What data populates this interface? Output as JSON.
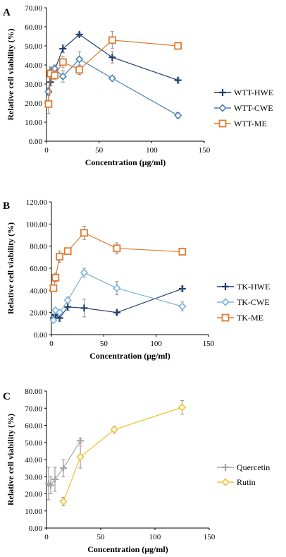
{
  "chart_data": [
    {
      "type": "line",
      "panel_label": "A",
      "xlabel": "Concentration (μg/ml)",
      "ylabel": "Relative cell viability (%)",
      "xlim": [
        0,
        150
      ],
      "ylim": [
        0,
        70
      ],
      "x_ticks": [
        "0",
        "50",
        "100",
        "150"
      ],
      "y_ticks": [
        "0.00",
        "10.00",
        "20.00",
        "30.00",
        "40.00",
        "50.00",
        "60.00",
        "70.00"
      ],
      "legend_position": "right",
      "series": [
        {
          "name": "WTT-HWE",
          "marker": "plus",
          "color": "#1f3f6e",
          "x": [
            1.95,
            3.9,
            7.8,
            15.6,
            31.25,
            62.5,
            125
          ],
          "y": [
            26.0,
            31.0,
            37.5,
            48.5,
            56.0,
            44.0,
            32.0
          ],
          "err": [
            1.5,
            2.0,
            2.0,
            2.0,
            1.0,
            3.0,
            1.0
          ]
        },
        {
          "name": "WTT-CWE",
          "marker": "diamond",
          "color": "#4a7fb8",
          "x": [
            1.95,
            3.9,
            7.8,
            15.6,
            31.25,
            62.5,
            125
          ],
          "y": [
            26.0,
            36.5,
            38.0,
            34.0,
            43.0,
            33.0,
            13.5
          ],
          "err": [
            2.0,
            2.5,
            2.0,
            3.0,
            4.0,
            1.0,
            1.5
          ]
        },
        {
          "name": "WTT-ME",
          "marker": "square",
          "color": "#e07a30",
          "x": [
            1.95,
            3.9,
            7.8,
            15.6,
            31.25,
            62.5,
            125
          ],
          "y": [
            19.5,
            35.5,
            34.5,
            41.5,
            37.5,
            53.0,
            50.0
          ],
          "err": [
            5.0,
            3.0,
            2.0,
            3.0,
            2.5,
            4.5,
            1.0
          ]
        }
      ]
    },
    {
      "type": "line",
      "panel_label": "B",
      "xlabel": "Concentration (μg/ml)",
      "ylabel": "Relative cell viability (%)",
      "xlim": [
        0,
        150
      ],
      "ylim": [
        0,
        120
      ],
      "x_ticks": [
        "0",
        "50",
        "100",
        "150"
      ],
      "y_ticks": [
        "0.00",
        "20.00",
        "40.00",
        "60.00",
        "80.00",
        "100.00",
        "120.00"
      ],
      "legend_position": "right",
      "series": [
        {
          "name": "TK-HWE",
          "marker": "plus",
          "color": "#1f3f6e",
          "x": [
            1.95,
            3.9,
            7.8,
            15.6,
            31.25,
            62.5,
            125
          ],
          "y": [
            15.0,
            18.0,
            15.0,
            25.0,
            24.0,
            20.0,
            41.5
          ],
          "err": [
            2.0,
            2.0,
            3.0,
            3.0,
            8.0,
            1.5,
            2.0
          ]
        },
        {
          "name": "TK-CWE",
          "marker": "diamond",
          "color": "#7ab0e0",
          "x": [
            1.95,
            3.9,
            7.8,
            15.6,
            31.25,
            62.5,
            125
          ],
          "y": [
            13.0,
            22.0,
            20.0,
            31.0,
            56.0,
            42.0,
            25.5
          ],
          "err": [
            2.0,
            2.0,
            2.0,
            3.0,
            4.0,
            6.0,
            4.0
          ]
        },
        {
          "name": "TK-ME",
          "marker": "square",
          "color": "#e07a30",
          "x": [
            1.95,
            3.9,
            7.8,
            15.6,
            31.25,
            62.5,
            125
          ],
          "y": [
            42.0,
            51.5,
            70.5,
            75.5,
            92.0,
            78.0,
            75.0
          ],
          "err": [
            3.0,
            4.0,
            5.0,
            2.0,
            6.0,
            5.0,
            2.0
          ]
        }
      ]
    },
    {
      "type": "line",
      "panel_label": "C",
      "xlabel": "Concentration (μg/ml)",
      "ylabel": "Relative cell viability (%)",
      "xlim": [
        0,
        150
      ],
      "ylim": [
        0,
        80
      ],
      "x_ticks": [
        "0",
        "50",
        "100",
        "150"
      ],
      "y_ticks": [
        "0.00",
        "10.00",
        "20.00",
        "30.00",
        "40.00",
        "50.00",
        "60.00",
        "70.00",
        "80.00"
      ],
      "legend_position": "right",
      "series": [
        {
          "name": "Quercetin",
          "marker": "plus",
          "color": "#a6a6a6",
          "x": [
            1.95,
            3.9,
            7.8,
            15.6,
            31.25
          ],
          "y": [
            26.0,
            25.0,
            28.5,
            35.0,
            51.0
          ],
          "err": [
            9.5,
            5.0,
            7.0,
            5.0,
            1.5
          ]
        },
        {
          "name": "Rutin",
          "marker": "diamond",
          "color": "#f2c12e",
          "x": [
            15.6,
            31.25,
            62.5,
            125
          ],
          "y": [
            15.5,
            41.5,
            57.5,
            70.5
          ],
          "err": [
            2.5,
            6.5,
            2.0,
            4.0
          ]
        }
      ]
    }
  ]
}
